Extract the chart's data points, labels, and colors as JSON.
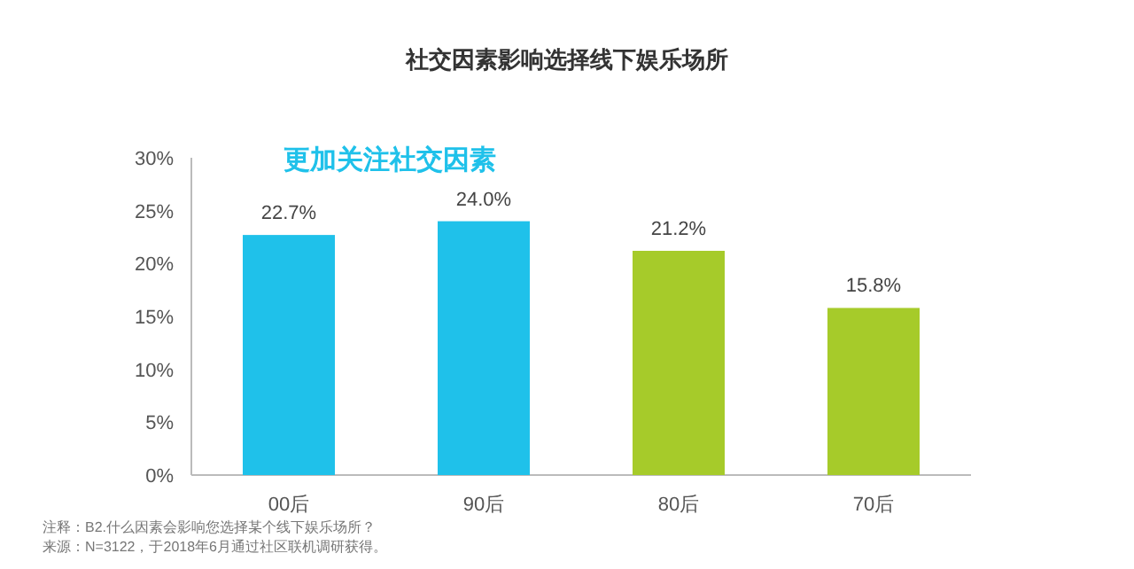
{
  "chart_data": {
    "type": "bar",
    "title": "社交因素影响选择线下娱乐场所",
    "categories": [
      "00后",
      "90后",
      "80后",
      "70后"
    ],
    "values": [
      22.7,
      24.0,
      21.2,
      15.8
    ],
    "value_labels": [
      "22.7%",
      "24.0%",
      "21.2%",
      "15.8%"
    ],
    "colors": [
      "#1fc1ea",
      "#1fc1ea",
      "#a6cb2a",
      "#a6cb2a"
    ],
    "ylim": [
      0,
      30
    ],
    "yticks": [
      {
        "value": 0,
        "label": "0%"
      },
      {
        "value": 5,
        "label": "5%"
      },
      {
        "value": 10,
        "label": "10%"
      },
      {
        "value": 15,
        "label": "15%"
      },
      {
        "value": 20,
        "label": "20%"
      },
      {
        "value": 25,
        "label": "25%"
      },
      {
        "value": 30,
        "label": "30%"
      }
    ],
    "grid": false,
    "annotations": [
      "更加关注社交因素",
      "注释：B2.什么因素会影响您选择某个线下娱乐场所？",
      "来源：N=3122，于2018年6月通过社区联机调研获得。"
    ]
  }
}
